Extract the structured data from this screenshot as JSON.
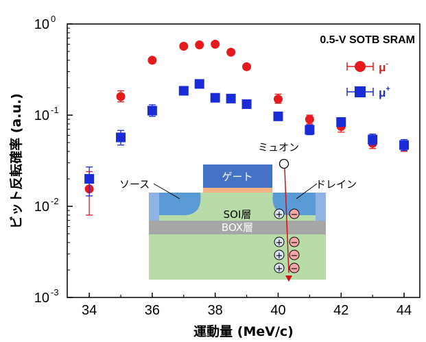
{
  "chart_data": {
    "type": "scatter",
    "title": "0.5-V SOTB SRAM",
    "xlabel": "運動量 (MeV/c)",
    "ylabel": "ビット反転確率 (a.u.)",
    "xlim": [
      33.3,
      44.5
    ],
    "ylim": [
      0.001,
      1
    ],
    "yscale": "log",
    "x_ticks": [
      "34",
      "36",
      "38",
      "40",
      "42",
      "44"
    ],
    "y_ticks": [
      {
        "base": "10",
        "exp": "0"
      },
      {
        "base": "10",
        "exp": "-1"
      },
      {
        "base": "10",
        "exp": "-2"
      },
      {
        "base": "10",
        "exp": "-3"
      }
    ],
    "legend_position": "top-right",
    "series": [
      {
        "name": "μ-",
        "label_base": "μ",
        "label_sup": "-",
        "color": "#e41a1c",
        "marker": "circle",
        "points": [
          {
            "x": 34,
            "y": 0.0155,
            "lo": 0.008,
            "hi": 0.024
          },
          {
            "x": 35,
            "y": 0.16,
            "lo": 0.14,
            "hi": 0.185
          },
          {
            "x": 36,
            "y": 0.4,
            "lo": 0.4,
            "hi": 0.4
          },
          {
            "x": 37,
            "y": 0.57,
            "lo": 0.57,
            "hi": 0.57
          },
          {
            "x": 37.5,
            "y": 0.59,
            "lo": 0.59,
            "hi": 0.59
          },
          {
            "x": 38,
            "y": 0.6,
            "lo": 0.6,
            "hi": 0.6
          },
          {
            "x": 38.5,
            "y": 0.49,
            "lo": 0.49,
            "hi": 0.49
          },
          {
            "x": 39,
            "y": 0.34,
            "lo": 0.34,
            "hi": 0.34
          },
          {
            "x": 40,
            "y": 0.15,
            "lo": 0.135,
            "hi": 0.17
          },
          {
            "x": 41,
            "y": 0.09,
            "lo": 0.08,
            "hi": 0.1
          },
          {
            "x": 42,
            "y": 0.075,
            "lo": 0.065,
            "hi": 0.085
          },
          {
            "x": 43,
            "y": 0.049,
            "lo": 0.043,
            "hi": 0.056
          },
          {
            "x": 44,
            "y": 0.046,
            "lo": 0.04,
            "hi": 0.052
          }
        ]
      },
      {
        "name": "μ+",
        "label_base": "μ",
        "label_sup": "+",
        "color": "#1a2cd6",
        "marker": "square",
        "points": [
          {
            "x": 34,
            "y": 0.02,
            "lo": 0.013,
            "hi": 0.027
          },
          {
            "x": 35,
            "y": 0.057,
            "lo": 0.047,
            "hi": 0.068
          },
          {
            "x": 36,
            "y": 0.112,
            "lo": 0.097,
            "hi": 0.13
          },
          {
            "x": 37,
            "y": 0.185,
            "lo": 0.17,
            "hi": 0.2
          },
          {
            "x": 37.5,
            "y": 0.22,
            "lo": 0.22,
            "hi": 0.22
          },
          {
            "x": 38,
            "y": 0.155,
            "lo": 0.155,
            "hi": 0.155
          },
          {
            "x": 38.5,
            "y": 0.152,
            "lo": 0.152,
            "hi": 0.152
          },
          {
            "x": 39,
            "y": 0.132,
            "lo": 0.132,
            "hi": 0.132
          },
          {
            "x": 40,
            "y": 0.097,
            "lo": 0.088,
            "hi": 0.107
          },
          {
            "x": 41,
            "y": 0.069,
            "lo": 0.061,
            "hi": 0.078
          },
          {
            "x": 42,
            "y": 0.084,
            "lo": 0.075,
            "hi": 0.094
          },
          {
            "x": 43,
            "y": 0.054,
            "lo": 0.047,
            "hi": 0.062
          },
          {
            "x": 44,
            "y": 0.047,
            "lo": 0.041,
            "hi": 0.054
          }
        ]
      }
    ]
  },
  "inset": {
    "gate": "ゲート",
    "source": "ソース",
    "drain": "ドレイン",
    "soi": "SOI層",
    "box": "BOX層",
    "muon": "ミュオン",
    "plus": "+",
    "minus": "−"
  }
}
